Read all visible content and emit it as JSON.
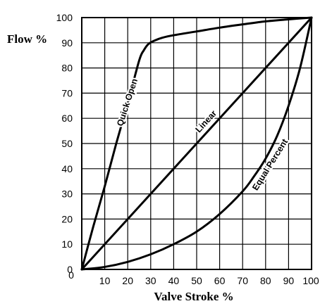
{
  "chart_data": {
    "type": "line",
    "title": "",
    "xlabel": "Valve Stroke %",
    "ylabel": "Flow %",
    "xlim": [
      0,
      100
    ],
    "ylim": [
      0,
      100
    ],
    "x_ticks": [
      "0",
      "10",
      "20",
      "30",
      "40",
      "50",
      "60",
      "70",
      "80",
      "90",
      "100"
    ],
    "y_ticks": [
      "0",
      "10",
      "20",
      "30",
      "40",
      "50",
      "60",
      "70",
      "80",
      "90",
      "100"
    ],
    "grid": true,
    "legend": "none",
    "series": [
      {
        "name": "Quick Open",
        "x": [
          0,
          5,
          10,
          15,
          20,
          25,
          27,
          29,
          32,
          35,
          40,
          50,
          60,
          70,
          80,
          90,
          100
        ],
        "y": [
          0,
          17,
          33,
          50,
          66,
          83,
          87,
          89.5,
          91,
          92,
          93,
          94.5,
          96,
          97.3,
          98.5,
          99.3,
          100
        ]
      },
      {
        "name": "Linear",
        "x": [
          0,
          100
        ],
        "y": [
          0,
          100
        ]
      },
      {
        "name": "Equal Percent",
        "x": [
          0,
          10,
          20,
          30,
          40,
          50,
          60,
          70,
          75,
          80,
          85,
          90,
          95,
          100
        ],
        "y": [
          0,
          1,
          3,
          6,
          10,
          15,
          22,
          31,
          37,
          44,
          53,
          65,
          80,
          100
        ]
      }
    ]
  }
}
